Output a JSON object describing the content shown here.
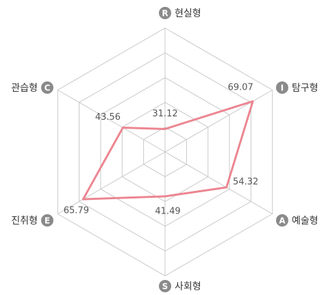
{
  "chart_data": {
    "type": "radar",
    "categories": [
      "현실형",
      "탐구형",
      "예술형",
      "사회형",
      "진취형",
      "관습형"
    ],
    "badges": [
      "R",
      "I",
      "A",
      "S",
      "E",
      "C"
    ],
    "values": [
      31.12,
      69.07,
      54.32,
      41.49,
      65.79,
      43.56
    ],
    "color": "#ec8691",
    "rlim": [
      20,
      80
    ],
    "rticks": [
      32,
      44,
      56,
      68,
      80
    ],
    "grid": true
  }
}
